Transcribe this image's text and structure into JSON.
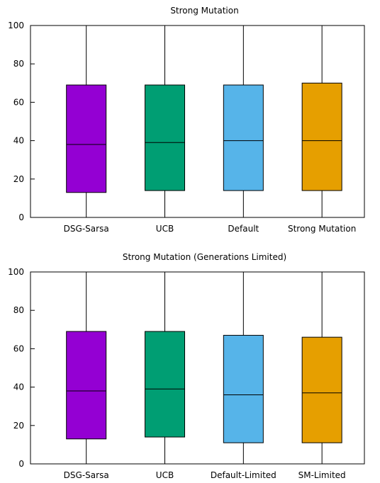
{
  "chart_data": [
    {
      "type": "box",
      "title": "Strong Mutation",
      "xlabel": "",
      "ylabel": "",
      "ylim": [
        0,
        100
      ],
      "yticks": [
        0,
        20,
        40,
        60,
        80,
        100
      ],
      "grid": false,
      "categories": [
        "DSG-Sarsa",
        "UCB",
        "Default",
        "Strong Mutation"
      ],
      "boxes": [
        {
          "min": 0,
          "q1": 13,
          "median": 38,
          "q3": 69,
          "max": 100,
          "color": "#9400d3"
        },
        {
          "min": 0,
          "q1": 14,
          "median": 39,
          "q3": 69,
          "max": 100,
          "color": "#009e73"
        },
        {
          "min": 0,
          "q1": 14,
          "median": 40,
          "q3": 69,
          "max": 100,
          "color": "#56b4e9"
        },
        {
          "min": 0,
          "q1": 14,
          "median": 40,
          "q3": 70,
          "max": 100,
          "color": "#e69f00"
        }
      ]
    },
    {
      "type": "box",
      "title": "Strong Mutation (Generations Limited)",
      "xlabel": "",
      "ylabel": "",
      "ylim": [
        0,
        100
      ],
      "yticks": [
        0,
        20,
        40,
        60,
        80,
        100
      ],
      "grid": false,
      "categories": [
        "DSG-Sarsa",
        "UCB",
        "Default-Limited",
        "SM-Limited"
      ],
      "boxes": [
        {
          "min": 0,
          "q1": 13,
          "median": 38,
          "q3": 69,
          "max": 100,
          "color": "#9400d3"
        },
        {
          "min": 0,
          "q1": 14,
          "median": 39,
          "q3": 69,
          "max": 100,
          "color": "#009e73"
        },
        {
          "min": 0,
          "q1": 11,
          "median": 36,
          "q3": 67,
          "max": 100,
          "color": "#56b4e9"
        },
        {
          "min": 0,
          "q1": 11,
          "median": 37,
          "q3": 66,
          "max": 100,
          "color": "#e69f00"
        }
      ]
    }
  ]
}
